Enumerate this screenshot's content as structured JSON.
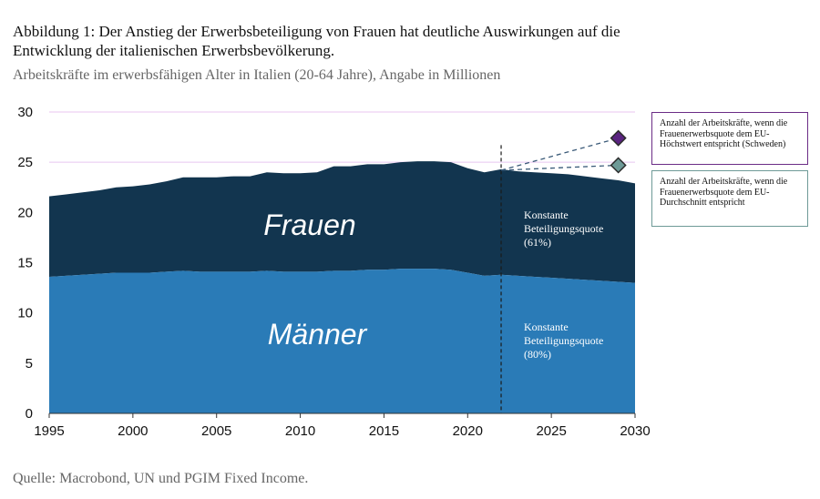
{
  "title": "Abbildung 1: Der Anstieg der Erwerbsbeteiligung von Frauen hat deutliche Auswirkungen auf die Entwicklung der italienischen Erwerbsbevölkerung.",
  "subtitle": "Arbeitskräfte im erwerbsfähigen Alter in Italien (20-64 Jahre), Angabe in Millionen",
  "source": "Quelle: Macrobond, UN und PGIM Fixed Income.",
  "colors": {
    "frauen": "#12354f",
    "maenner": "#2a7bb7",
    "purple": "#5a2380",
    "teal": "#6e9a97",
    "grid": "#e8c6f0"
  },
  "chart_data": {
    "type": "area",
    "stacked": true,
    "xlim": [
      1995,
      2030
    ],
    "ylim": [
      0,
      30
    ],
    "x_ticks": [
      1995,
      2000,
      2005,
      2010,
      2015,
      2020,
      2025,
      2030
    ],
    "y_ticks": [
      0,
      5,
      10,
      15,
      20,
      25,
      30
    ],
    "x": [
      1995,
      1996,
      1997,
      1998,
      1999,
      2000,
      2001,
      2002,
      2003,
      2004,
      2005,
      2006,
      2007,
      2008,
      2009,
      2010,
      2011,
      2012,
      2013,
      2014,
      2015,
      2016,
      2017,
      2018,
      2019,
      2020,
      2021,
      2022,
      2023,
      2024,
      2025,
      2026,
      2027,
      2028,
      2029,
      2030
    ],
    "series": [
      {
        "name": "Männer",
        "values": [
          13.6,
          13.7,
          13.8,
          13.9,
          14.0,
          14.0,
          14.0,
          14.1,
          14.2,
          14.1,
          14.1,
          14.1,
          14.1,
          14.2,
          14.1,
          14.1,
          14.1,
          14.2,
          14.2,
          14.3,
          14.3,
          14.4,
          14.4,
          14.4,
          14.3,
          14.0,
          13.7,
          13.8,
          13.7,
          13.6,
          13.5,
          13.4,
          13.3,
          13.2,
          13.1,
          13.0
        ]
      },
      {
        "name": "Frauen",
        "values": [
          8.0,
          8.1,
          8.2,
          8.3,
          8.5,
          8.6,
          8.8,
          9.0,
          9.3,
          9.4,
          9.4,
          9.5,
          9.5,
          9.8,
          9.8,
          9.8,
          9.9,
          10.4,
          10.4,
          10.5,
          10.5,
          10.6,
          10.7,
          10.7,
          10.7,
          10.4,
          10.3,
          10.5,
          10.4,
          10.4,
          10.4,
          10.4,
          10.3,
          10.2,
          10.1,
          9.9
        ]
      }
    ],
    "area_labels": [
      "Frauen",
      "Männer"
    ],
    "annotations": {
      "frauen_note": [
        "Konstante",
        "Beteiligungsquote",
        "(61%)"
      ],
      "maenner_note": [
        "Konstante",
        "Beteiligungsquote",
        "(80%)"
      ]
    },
    "vline_x": 2022,
    "scenarios": [
      {
        "start": [
          2022,
          24.2
        ],
        "end": [
          2029,
          27.4
        ],
        "label": "Anzahl der Arbeitskräfte, wenn die Frauenerwerbsquote dem EU-Höchstwert entspricht (Schweden)"
      },
      {
        "start": [
          2022,
          24.2
        ],
        "end": [
          2029,
          24.7
        ],
        "label": "Anzahl der Arbeitskräfte, wenn die Frauenerwerbsquote dem EU-Durchschnitt entspricht"
      }
    ]
  }
}
